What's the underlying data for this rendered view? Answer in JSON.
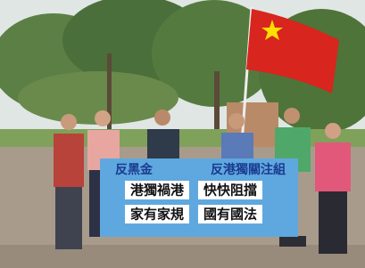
{
  "banner": {
    "title_left": "反黑金",
    "title_right": "反港獨關注組",
    "lines": [
      [
        "港獨禍港",
        "快快阻擋"
      ],
      [
        "家有家規",
        "國有國法"
      ]
    ]
  }
}
